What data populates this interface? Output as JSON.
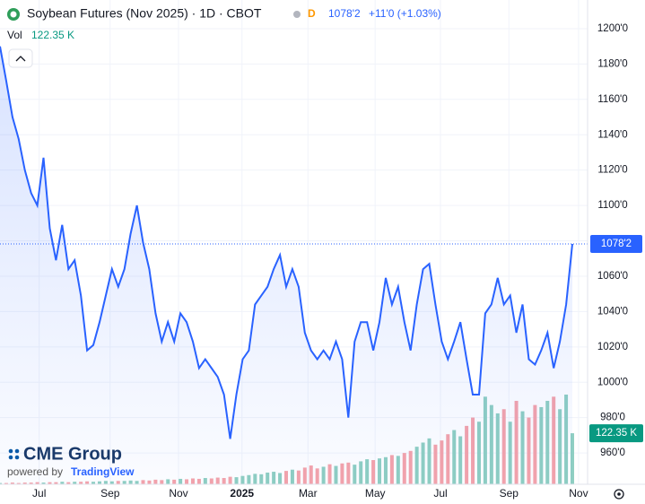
{
  "chart_data": {
    "type": "line",
    "title": "Soybean Futures (Nov 2025) · 1D · CBOT",
    "flag": "D",
    "last_price": {
      "value": 1078.25,
      "label": "1078'2"
    },
    "change": "+11'0 (+1.03%)",
    "volume_label": "Vol",
    "last_volume": {
      "value": 122.35,
      "label": "122.35 K"
    },
    "watermark": {
      "logo": "CME Group",
      "powered_by": "powered by",
      "brand": "TradingView"
    },
    "ylim": [
      942.3,
      1216.2
    ],
    "yticks": [
      {
        "value": 1200,
        "label": "1200'0"
      },
      {
        "value": 1180,
        "label": "1180'0"
      },
      {
        "value": 1160,
        "label": "1160'0"
      },
      {
        "value": 1140,
        "label": "1140'0"
      },
      {
        "value": 1120,
        "label": "1120'0"
      },
      {
        "value": 1100,
        "label": "1100'0"
      },
      {
        "value": 1080,
        "label": "1080'0"
      },
      {
        "value": 1060,
        "label": "1060'0"
      },
      {
        "value": 1040,
        "label": "1040'0"
      },
      {
        "value": 1020,
        "label": "1020'0"
      },
      {
        "value": 1000,
        "label": "1000'0"
      },
      {
        "value": 980,
        "label": "980'0"
      },
      {
        "value": 960,
        "label": "960'0"
      }
    ],
    "xlim": [
      0,
      94.45
    ],
    "xticks": [
      {
        "value": 6.3,
        "label": "Jul"
      },
      {
        "value": 17.7,
        "label": "Sep"
      },
      {
        "value": 28.7,
        "label": "Nov"
      },
      {
        "value": 38.9,
        "label": "2025"
      },
      {
        "value": 49.5,
        "label": "Mar"
      },
      {
        "value": 60.3,
        "label": "May"
      },
      {
        "value": 70.8,
        "label": "Jul"
      },
      {
        "value": 81.8,
        "label": "Sep"
      },
      {
        "value": 93.0,
        "label": "Nov"
      }
    ],
    "grid": true,
    "series": [
      {
        "color": "#2962ff",
        "values": [
          1190,
          1170.6,
          1150,
          1137.6,
          1120,
          1107,
          1100,
          1127,
          1087,
          1069,
          1089,
          1064,
          1069,
          1049,
          1018,
          1021,
          1034,
          1049,
          1064,
          1054,
          1064,
          1084,
          1100,
          1079,
          1064,
          1039,
          1023,
          1034,
          1023,
          1039,
          1034,
          1023,
          1008,
          1013,
          1008,
          1003,
          993,
          968,
          993,
          1013,
          1018,
          1044,
          1049,
          1054,
          1064,
          1072,
          1054,
          1064,
          1054,
          1028,
          1018,
          1013,
          1018,
          1013,
          1023,
          1013,
          980,
          1023,
          1034,
          1034,
          1018,
          1034,
          1059,
          1044,
          1054,
          1034,
          1018,
          1044,
          1064,
          1067,
          1044,
          1023,
          1013,
          1023,
          1034,
          1013,
          993,
          993,
          1039,
          1044,
          1059,
          1044,
          1049,
          1028,
          1044,
          1013,
          1010,
          1018,
          1028,
          1008,
          1023,
          1044,
          1078.25
        ]
      }
    ],
    "volume": {
      "up_color": "#8fcfc2",
      "down_color": "#f5a3aa",
      "values": [
        3,
        3,
        4,
        3,
        4,
        4,
        5,
        4,
        5,
        5,
        6,
        5,
        6,
        6,
        7,
        6,
        7,
        8,
        7,
        8,
        8,
        9,
        8,
        10,
        9,
        11,
        10,
        12,
        11,
        13,
        12,
        14,
        13,
        15,
        14,
        16,
        15,
        18,
        17,
        20,
        22,
        25,
        24,
        28,
        30,
        27,
        32,
        35,
        33,
        40,
        45,
        38,
        42,
        48,
        44,
        50,
        52,
        47,
        55,
        60,
        58,
        62,
        65,
        70,
        68,
        75,
        80,
        90,
        100,
        110,
        95,
        105,
        120,
        130,
        115,
        140,
        160,
        150,
        210,
        190,
        170,
        180,
        150,
        200,
        175,
        160,
        190,
        185,
        200,
        210,
        180,
        215,
        122.35
      ]
    }
  }
}
